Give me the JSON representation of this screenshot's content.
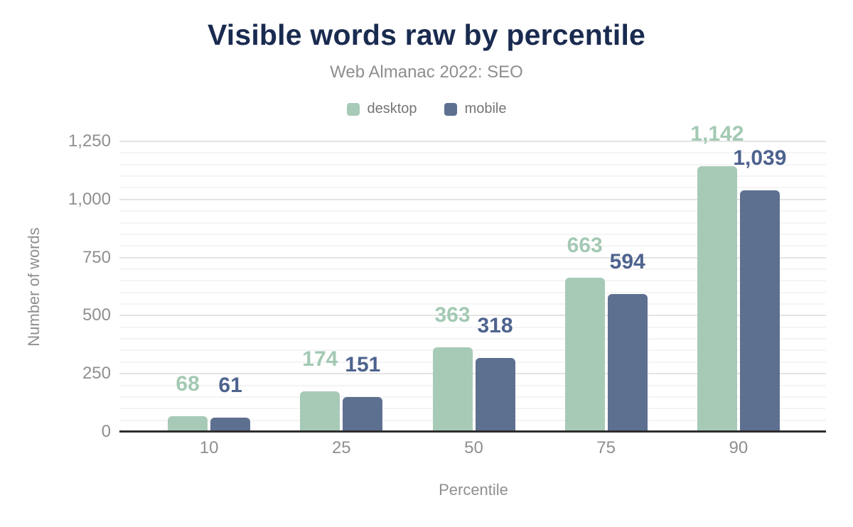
{
  "chart_data": {
    "type": "bar",
    "title": "Visible words raw by percentile",
    "subtitle": "Web Almanac 2022: SEO",
    "xlabel": "Percentile",
    "ylabel": "Number of words",
    "categories": [
      "10",
      "25",
      "50",
      "75",
      "90"
    ],
    "series": [
      {
        "name": "desktop",
        "values": [
          68,
          174,
          363,
          663,
          1142
        ],
        "labels": [
          "68",
          "174",
          "363",
          "663",
          "1,142"
        ],
        "color": "#a7cab7",
        "label_color": "#a3c9b3"
      },
      {
        "name": "mobile",
        "values": [
          61,
          151,
          318,
          594,
          1039
        ],
        "labels": [
          "61",
          "151",
          "318",
          "594",
          "1,039"
        ],
        "color": "#5e7090",
        "label_color": "#4e638e"
      }
    ],
    "ylim": [
      0,
      1250
    ],
    "yticks": [
      {
        "value": 0,
        "label": "0"
      },
      {
        "value": 250,
        "label": "250"
      },
      {
        "value": 500,
        "label": "500"
      },
      {
        "value": 750,
        "label": "750"
      },
      {
        "value": 1000,
        "label": "1,000"
      },
      {
        "value": 1250,
        "label": "1,250"
      }
    ],
    "minor_grid_every": 50,
    "grid": true,
    "legend_position": "top"
  },
  "colors": {
    "title": "#1a2b50",
    "subtitle": "#8e8e8e",
    "legend_text": "#757575",
    "tick_text": "#8f8f8f",
    "axis_title_text": "#8f8f8f",
    "axis_line": "#2e2e2e",
    "grid_major": "#e4e4e4",
    "grid_minor": "#f4f4f4",
    "background": "#ffffff"
  }
}
